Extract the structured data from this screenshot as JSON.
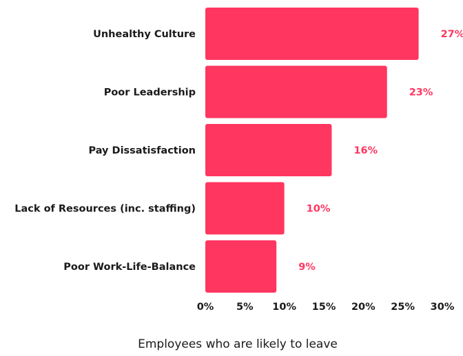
{
  "chart_data": {
    "type": "bar",
    "orientation": "horizontal",
    "categories": [
      "Unhealthy Culture",
      "Poor Leadership",
      "Pay Dissatisfaction",
      "Lack of Resources (inc. staffing)",
      "Poor Work-Life-Balance"
    ],
    "values": [
      27,
      23,
      16,
      10,
      9
    ],
    "value_labels": [
      "27%",
      "23%",
      "16%",
      "10%",
      "9%"
    ],
    "x_ticks": [
      0,
      5,
      10,
      15,
      20,
      25,
      30
    ],
    "x_tick_labels": [
      "0%",
      "5%",
      "10%",
      "15%",
      "20%",
      "25%",
      "30%"
    ],
    "xlim": [
      0,
      30
    ],
    "title": "",
    "xlabel": "Employees who are likely to leave",
    "ylabel": "",
    "grid": false,
    "legend": "none",
    "colors": {
      "bar": "#ff3660",
      "value_label": "#ff3660",
      "text": "#1a1a1a"
    }
  }
}
